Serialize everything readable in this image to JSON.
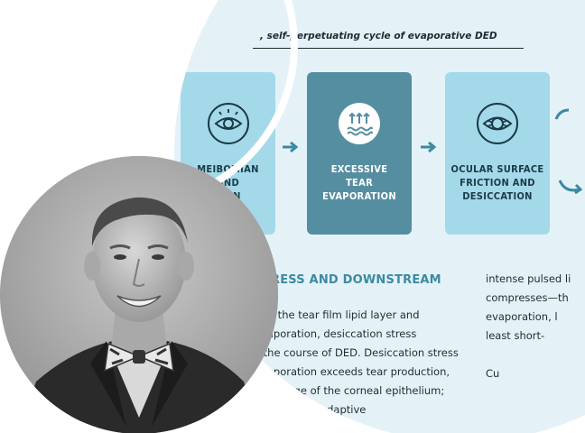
{
  "infographic": {
    "caption": ", self-perpetuating cycle of evaporative DED",
    "boxes": [
      {
        "label_lines": [
          "MEIBOMIAN",
          "AND",
          "TION"
        ],
        "icon": "eye-icon"
      },
      {
        "label_lines": [
          "EXCESSIVE",
          "TEAR",
          "EVAPORATION"
        ],
        "icon": "evaporation-icon"
      },
      {
        "label_lines": [
          "OCULAR SURFACE",
          "FRICTION AND",
          "DESICCATION"
        ],
        "icon": "irritated-eye-icon"
      }
    ],
    "section_heading": "RESS AND DOWNSTREAM",
    "column1_lines": [
      "n of the tear film lipid layer and",
      "evaporation, desiccation stress",
      "s the course of DED. Desiccation stress",
      " evaporation exceeds tear production,",
      "d damage of the corneal epithelium;",
      "f innate and adaptive"
    ],
    "column2_lines": [
      "intense pulsed li",
      "compresses—th",
      "evaporation, l",
      "least short-",
      "",
      "Cu"
    ],
    "colors": {
      "circle_bg": "#e4f2f8",
      "light_box": "#a4d9ea",
      "dark_box": "#558ea0",
      "heading": "#3b8aa0"
    }
  },
  "portrait": {
    "subject": "headshot-photo"
  }
}
